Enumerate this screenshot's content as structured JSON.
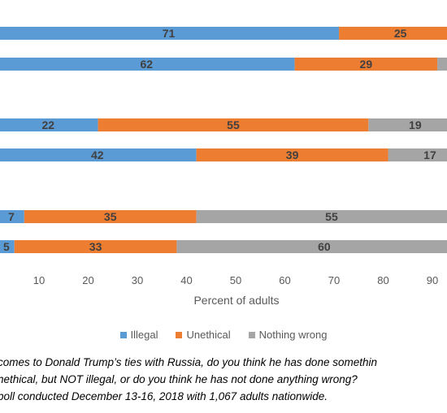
{
  "chart_data": {
    "type": "bar",
    "orientation": "horizontal",
    "stacked": true,
    "xlabel": "Percent of adults",
    "xlim": [
      0,
      100
    ],
    "xticks": [
      10,
      20,
      30,
      40,
      50,
      60,
      70,
      80,
      90
    ],
    "grid": false,
    "legend_position": "bottom",
    "series": [
      {
        "name": "Illegal",
        "color": "#5B9BD5",
        "values": [
          71,
          62,
          22,
          42,
          7,
          5
        ]
      },
      {
        "name": "Unethical",
        "color": "#ED7D31",
        "values": [
          25,
          29,
          55,
          39,
          35,
          33
        ]
      },
      {
        "name": "Nothing wrong",
        "color": "#A5A5A5",
        "values": [
          4,
          9,
          19,
          17,
          55,
          60
        ]
      }
    ],
    "data_labels": [
      [
        "71",
        "25",
        ""
      ],
      [
        "62",
        "29",
        ""
      ],
      [
        "22",
        "55",
        "19"
      ],
      [
        "42",
        "39",
        "17"
      ],
      [
        "7",
        "35",
        "55"
      ],
      [
        "5",
        "33",
        "60"
      ]
    ]
  },
  "footnote": {
    "line1": "comes to Donald Trump’s ties with Russia, do you think he has done somethin",
    "line2": "nethical, but NOT illegal, or do you think he has not done anything wrong?",
    "line3": "poll conducted December 13-16, 2018 with 1,067 adults nationwide."
  }
}
